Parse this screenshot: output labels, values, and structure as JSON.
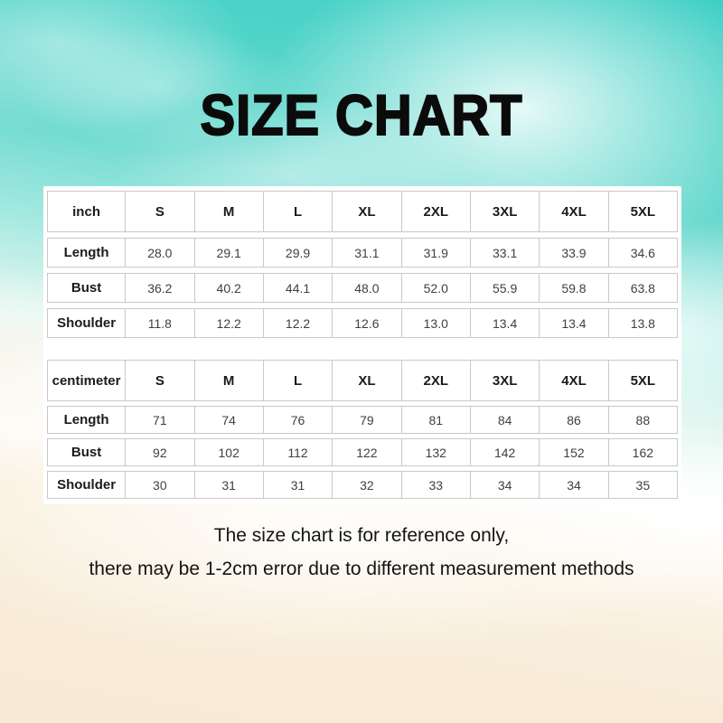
{
  "title": "SIZE CHART",
  "footer": {
    "line1": "The size chart is for reference only,",
    "line2": "there may be 1-2cm error due to different measurement methods"
  },
  "chart_data": [
    {
      "type": "table",
      "unit": "inch",
      "columns": [
        "inch",
        "S",
        "M",
        "L",
        "XL",
        "2XL",
        "3XL",
        "4XL",
        "5XL"
      ],
      "rows": [
        [
          "Length",
          "28.0",
          "29.1",
          "29.9",
          "31.1",
          "31.9",
          "33.1",
          "33.9",
          "34.6"
        ],
        [
          "Bust",
          "36.2",
          "40.2",
          "44.1",
          "48.0",
          "52.0",
          "55.9",
          "59.8",
          "63.8"
        ],
        [
          "Shoulder",
          "11.8",
          "12.2",
          "12.2",
          "12.6",
          "13.0",
          "13.4",
          "13.4",
          "13.8"
        ]
      ]
    },
    {
      "type": "table",
      "unit": "centimeter",
      "columns": [
        "centimeter",
        "S",
        "M",
        "L",
        "XL",
        "2XL",
        "3XL",
        "4XL",
        "5XL"
      ],
      "rows": [
        [
          "Length",
          "71",
          "74",
          "76",
          "79",
          "81",
          "84",
          "86",
          "88"
        ],
        [
          "Bust",
          "92",
          "102",
          "112",
          "122",
          "132",
          "142",
          "152",
          "162"
        ],
        [
          "Shoulder",
          "30",
          "31",
          "31",
          "32",
          "33",
          "34",
          "34",
          "35"
        ]
      ]
    }
  ],
  "colors": {
    "water_teal": "#4ed2c6",
    "sand": "#f7ead5",
    "panel": "#ffffff",
    "table_border": "#c9c9c9",
    "title_text": "#0b0b0b",
    "body_text": "#141414"
  }
}
